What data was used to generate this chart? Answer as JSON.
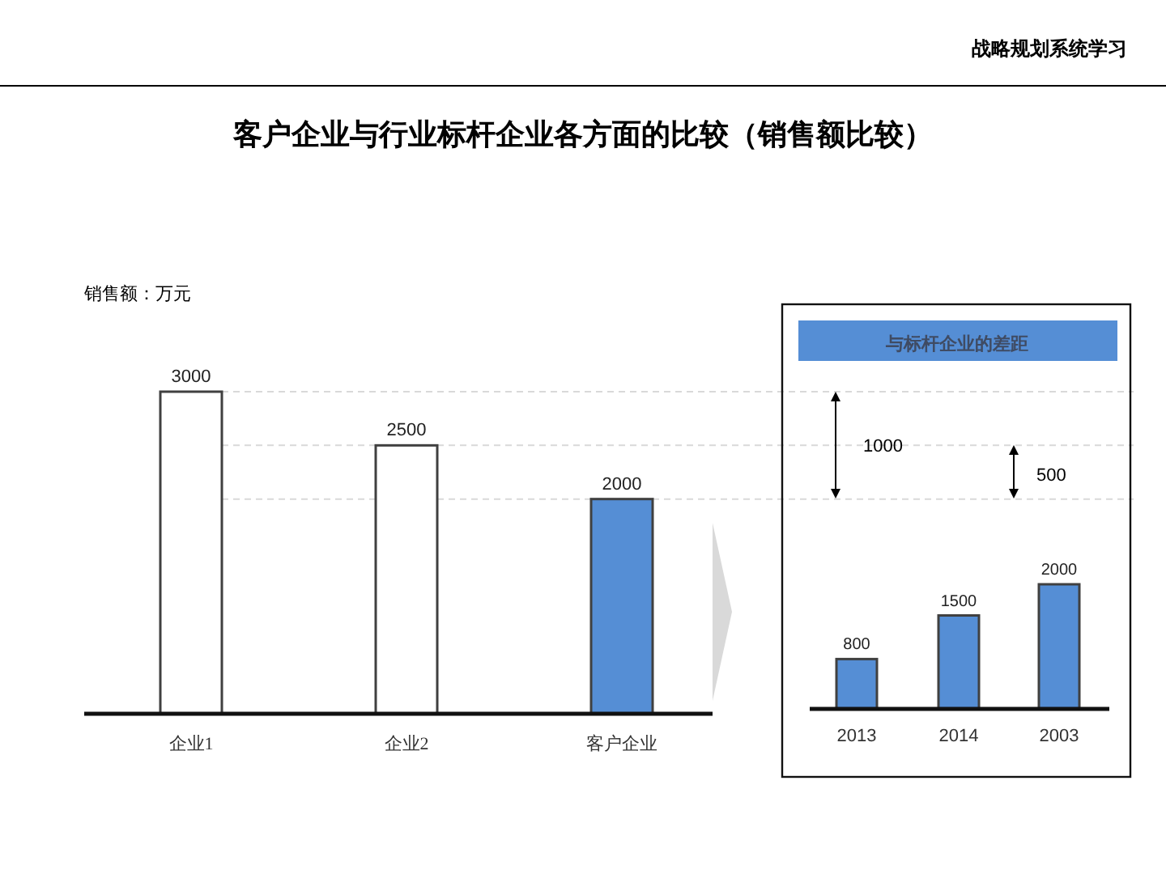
{
  "chart_data": [
    {
      "type": "bar",
      "title": "客户企业与行业标杆企业各方面的比较（销售额比较）",
      "ylabel": "销售额：万元",
      "categories": [
        "企业1",
        "企业2",
        "客户企业"
      ],
      "values": [
        3000,
        2500,
        2000
      ],
      "colors": [
        "#ffffff",
        "#ffffff",
        "#558ed5"
      ],
      "data_labels": true,
      "ref_lines": [
        {
          "axis": "y",
          "value": 3000,
          "line_style": "dashed",
          "color": "#d9d9d9"
        },
        {
          "axis": "y",
          "value": 2500,
          "line_style": "dashed",
          "color": "#d9d9d9"
        },
        {
          "axis": "y",
          "value": 2000,
          "line_style": "dashed",
          "color": "#d9d9d9"
        }
      ],
      "annotations": [
        "战略规划系统学习"
      ]
    },
    {
      "type": "bar",
      "title": "与标杆企业的差距",
      "categories": [
        "2013",
        "2014",
        "2003"
      ],
      "values": [
        800,
        1500,
        2000
      ],
      "color": "#558ed5",
      "data_labels": true,
      "annotations": [
        "1000",
        "500"
      ]
    }
  ]
}
